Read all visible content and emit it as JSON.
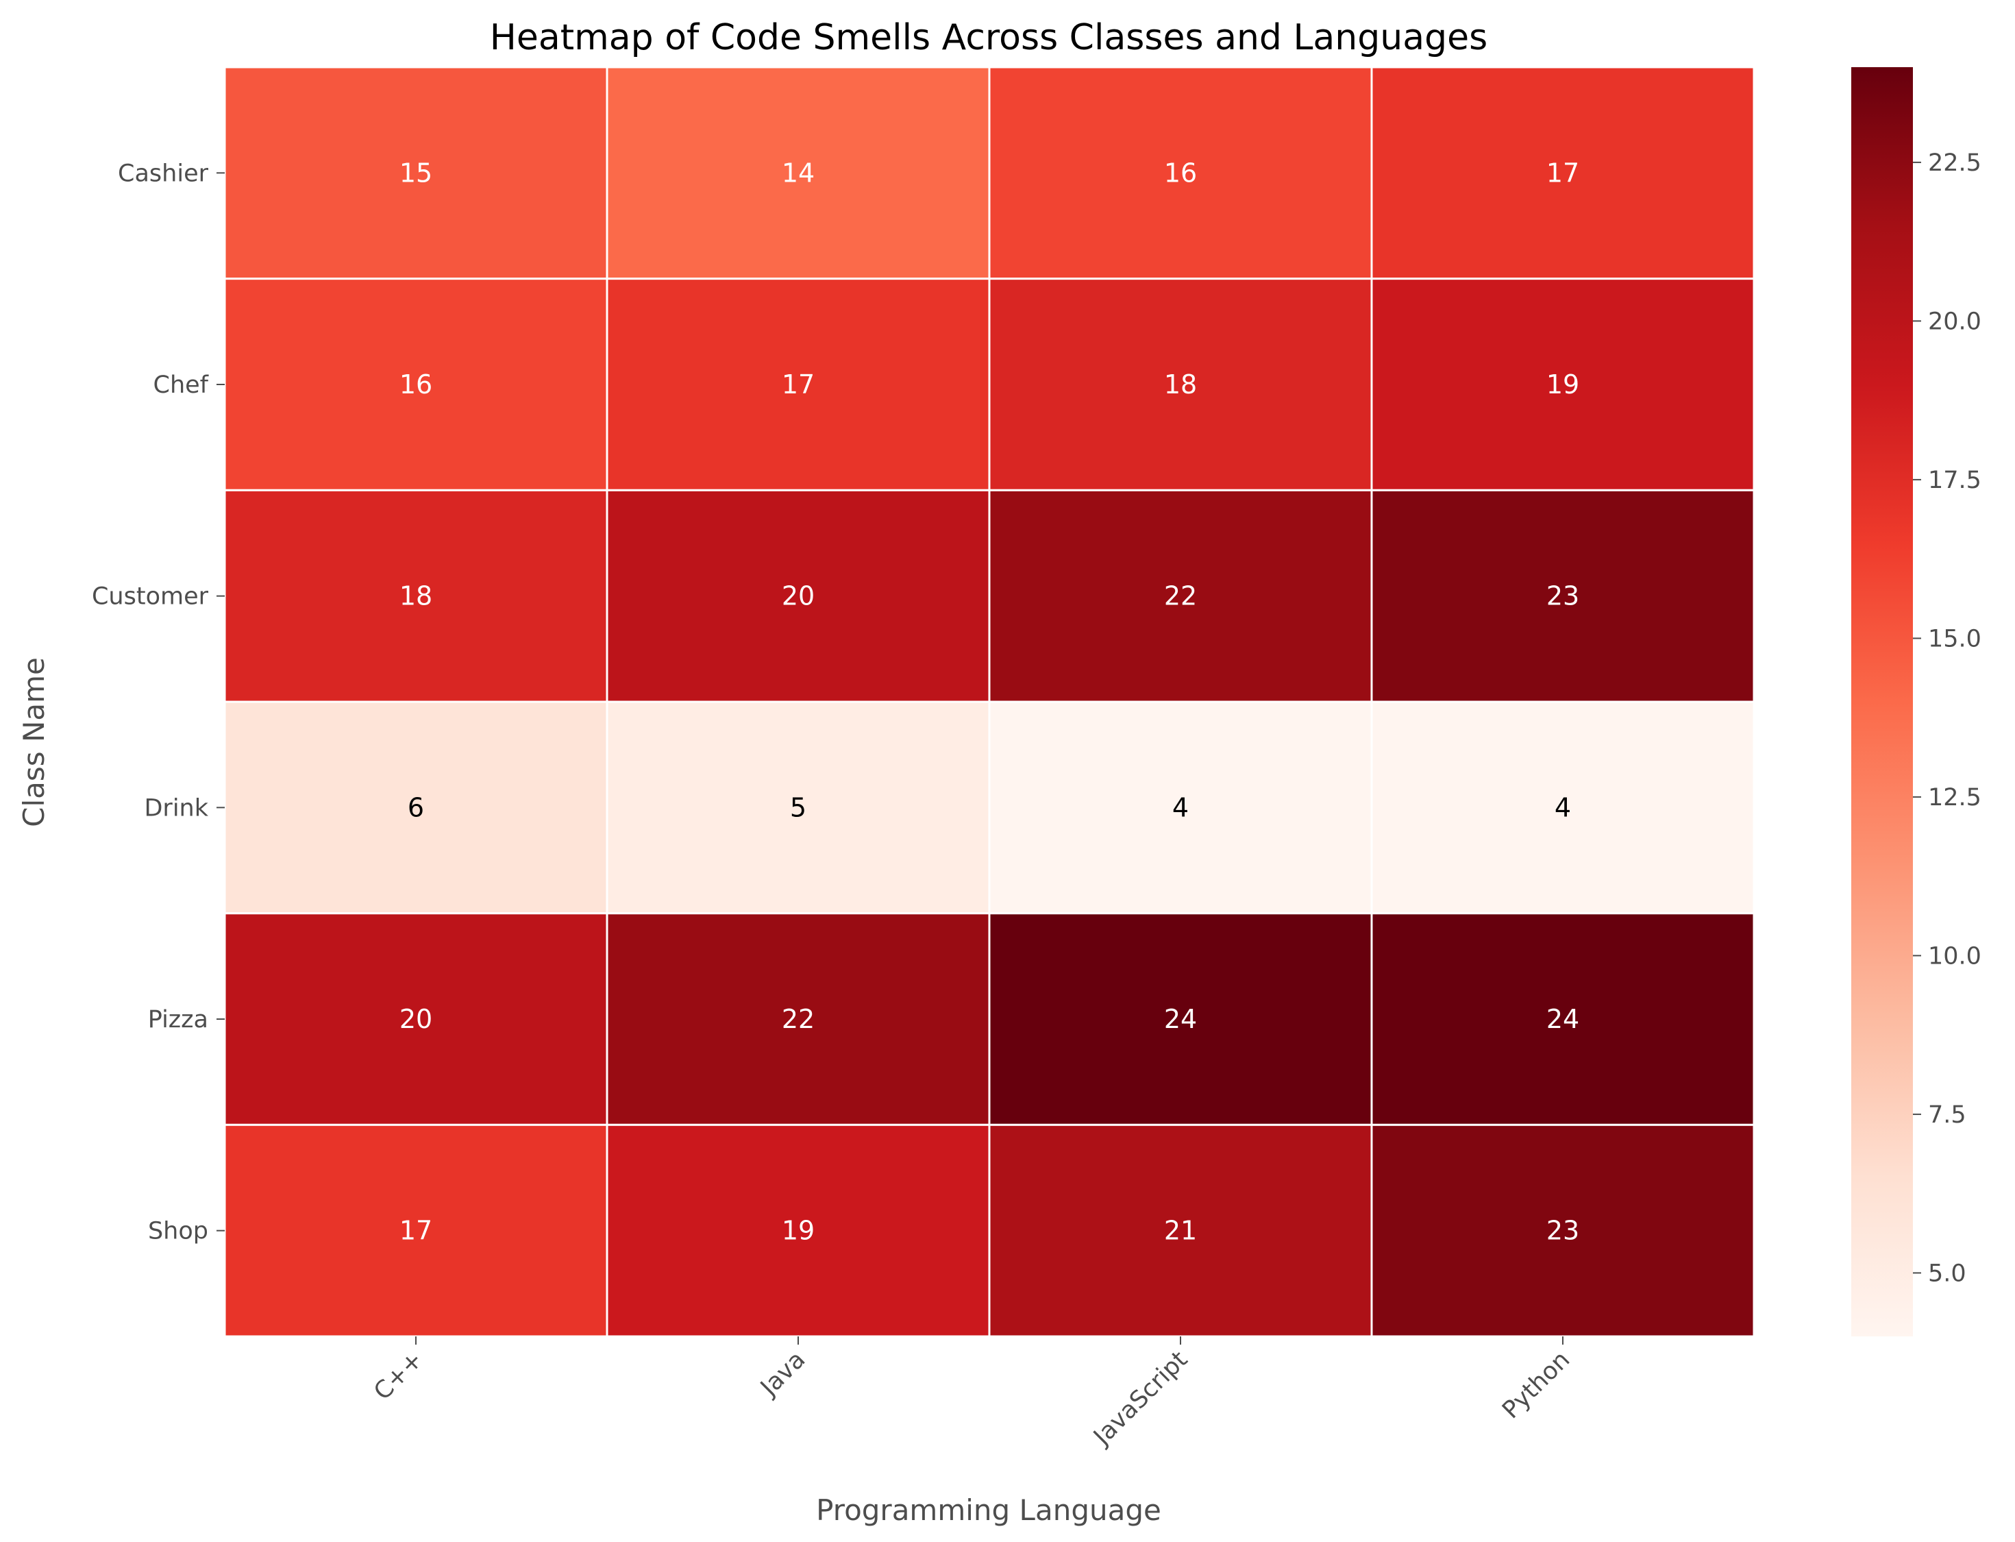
{
  "chart_data": {
    "type": "heatmap",
    "title": "Heatmap of Code Smells Across Classes and Languages",
    "xlabel": "Programming Language",
    "ylabel": "Class Name",
    "x_categories": [
      "C++",
      "Java",
      "JavaScript",
      "Python"
    ],
    "y_categories": [
      "Cashier",
      "Chef",
      "Customer",
      "Drink",
      "Pizza",
      "Shop"
    ],
    "values": [
      [
        15,
        14,
        16,
        17
      ],
      [
        16,
        17,
        18,
        19
      ],
      [
        18,
        20,
        22,
        23
      ],
      [
        6,
        5,
        4,
        4
      ],
      [
        20,
        22,
        24,
        24
      ],
      [
        17,
        19,
        21,
        23
      ]
    ],
    "colormap": "Reds",
    "color_range": [
      4,
      24
    ],
    "colorbar_ticks": [
      "5.0",
      "7.5",
      "10.0",
      "12.5",
      "15.0",
      "17.5",
      "20.0",
      "22.5"
    ],
    "grid": false,
    "annotated": true
  }
}
